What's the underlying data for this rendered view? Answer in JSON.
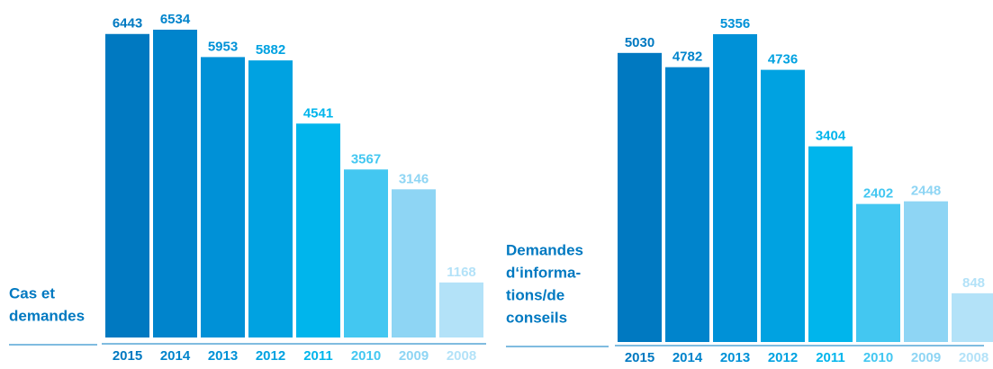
{
  "chart_data": [
    {
      "type": "bar",
      "title": [
        "Cas et",
        "demandes"
      ],
      "categories": [
        "2015",
        "2014",
        "2013",
        "2012",
        "2011",
        "2010",
        "2009",
        "2008"
      ],
      "values": [
        6443,
        6534,
        5953,
        5882,
        4541,
        3567,
        3146,
        1168
      ],
      "colors": [
        "#0079c1",
        "#0084cc",
        "#0091d7",
        "#00a2e1",
        "#00b5ec",
        "#43c7f1",
        "#8ed5f4",
        "#b3e2f8"
      ]
    },
    {
      "type": "bar",
      "title": [
        "Demandes",
        "d‘informa-",
        "tions/de",
        "conseils"
      ],
      "categories": [
        "2015",
        "2014",
        "2013",
        "2012",
        "2011",
        "2010",
        "2009",
        "2008"
      ],
      "values": [
        5030,
        4782,
        5356,
        4736,
        3404,
        2402,
        2448,
        848
      ],
      "colors": [
        "#0079c1",
        "#0084cc",
        "#0091d7",
        "#00a2e1",
        "#00b5ec",
        "#43c7f1",
        "#8ed5f4",
        "#b3e2f8"
      ]
    }
  ]
}
